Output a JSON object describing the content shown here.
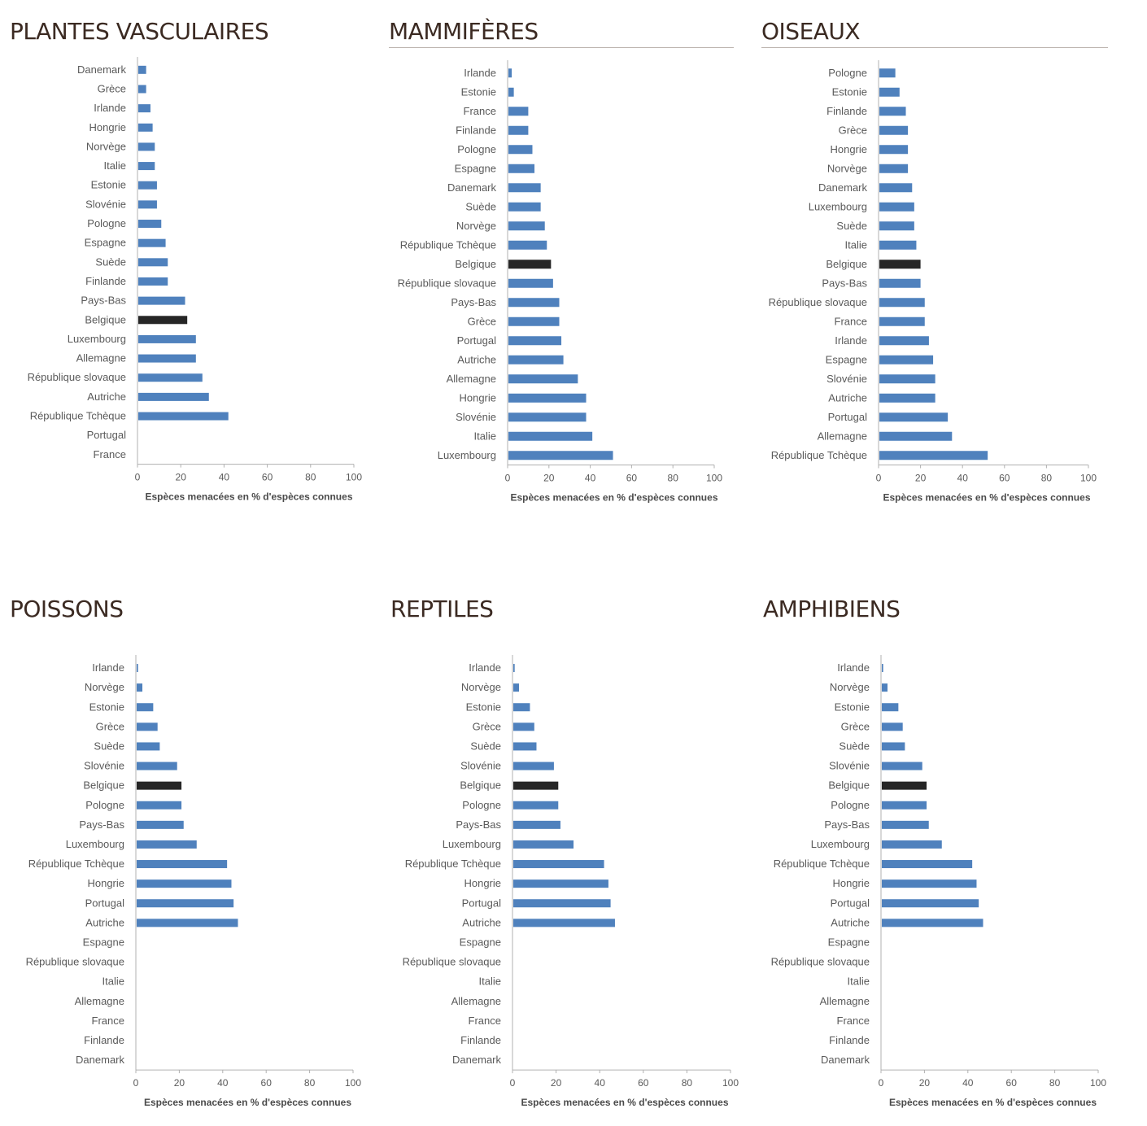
{
  "colors": {
    "bar": "#4f81bd",
    "highlight": "#262626",
    "axis": "#b0b0b0",
    "title": "#3b2a22"
  },
  "chart_data": [
    {
      "type": "bar",
      "orientation": "horizontal",
      "title": "PLANTES VASCULAIRES",
      "xlabel": "Espèces menacées en % d'espèces connues",
      "xlim": [
        0,
        100
      ],
      "xticks": [
        0,
        20,
        40,
        60,
        80,
        100
      ],
      "highlight": "Belgique",
      "categories": [
        "Danemark",
        "Grèce",
        "Irlande",
        "Hongrie",
        "Norvège",
        "Italie",
        "Estonie",
        "Slovénie",
        "Pologne",
        "Espagne",
        "Suède",
        "Finlande",
        "Pays-Bas",
        "Belgique",
        "Luxembourg",
        "Allemagne",
        "République slovaque",
        "Autriche",
        "République Tchèque",
        "Portugal",
        "France"
      ],
      "values": [
        4,
        4,
        6,
        7,
        8,
        8,
        9,
        9,
        11,
        13,
        14,
        14,
        22,
        23,
        27,
        27,
        30,
        33,
        42,
        0,
        0
      ]
    },
    {
      "type": "bar",
      "orientation": "horizontal",
      "title": "MAMMIFÈRES",
      "xlabel": "Espèces menacées en % d'espèces connues",
      "xlim": [
        0,
        100
      ],
      "xticks": [
        0,
        20,
        40,
        60,
        80,
        100
      ],
      "highlight": "Belgique",
      "categories": [
        "Irlande",
        "Estonie",
        "France",
        "Finlande",
        "Pologne",
        "Espagne",
        "Danemark",
        "Suède",
        "Norvège",
        "République Tchèque",
        "Belgique",
        "République slovaque",
        "Pays-Bas",
        "Grèce",
        "Portugal",
        "Autriche",
        "Allemagne",
        "Hongrie",
        "Slovénie",
        "Italie",
        "Luxembourg"
      ],
      "values": [
        2,
        3,
        10,
        10,
        12,
        13,
        16,
        16,
        18,
        19,
        21,
        22,
        25,
        25,
        26,
        27,
        34,
        38,
        38,
        41,
        51
      ]
    },
    {
      "type": "bar",
      "orientation": "horizontal",
      "title": "OISEAUX",
      "xlabel": "Espèces menacées en % d'espèces connues",
      "xlim": [
        0,
        100
      ],
      "xticks": [
        0,
        20,
        40,
        60,
        80,
        100
      ],
      "highlight": "Belgique",
      "categories": [
        "Pologne",
        "Estonie",
        "Finlande",
        "Grèce",
        "Hongrie",
        "Norvège",
        "Danemark",
        "Luxembourg",
        "Suède",
        "Italie",
        "Belgique",
        "Pays-Bas",
        "République slovaque",
        "France",
        "Irlande",
        "Espagne",
        "Slovénie",
        "Autriche",
        "Portugal",
        "Allemagne",
        "République Tchèque"
      ],
      "values": [
        8,
        10,
        13,
        14,
        14,
        14,
        16,
        17,
        17,
        18,
        20,
        20,
        22,
        22,
        24,
        26,
        27,
        27,
        33,
        35,
        52
      ]
    },
    {
      "type": "bar",
      "orientation": "horizontal",
      "title": "POISSONS",
      "xlabel": "Espèces menacées en % d'espèces connues",
      "xlim": [
        0,
        100
      ],
      "xticks": [
        0,
        20,
        40,
        60,
        80,
        100
      ],
      "highlight": "Belgique",
      "categories": [
        "Irlande",
        "Norvège",
        "Estonie",
        "Grèce",
        "Suède",
        "Slovénie",
        "Belgique",
        "Pologne",
        "Pays-Bas",
        "Luxembourg",
        "République Tchèque",
        "Hongrie",
        "Portugal",
        "Autriche",
        "Espagne",
        "République slovaque",
        "Italie",
        "Allemagne",
        "France",
        "Finlande",
        "Danemark"
      ],
      "values": [
        1,
        3,
        8,
        10,
        11,
        19,
        21,
        21,
        22,
        28,
        42,
        44,
        45,
        47,
        0,
        0,
        0,
        0,
        0,
        0,
        0
      ]
    },
    {
      "type": "bar",
      "orientation": "horizontal",
      "title": "REPTILES",
      "xlabel": "Espèces menacées en % d'espèces connues",
      "xlim": [
        0,
        100
      ],
      "xticks": [
        0,
        20,
        40,
        60,
        80,
        100
      ],
      "highlight": "Belgique",
      "categories": [
        "Irlande",
        "Norvège",
        "Estonie",
        "Grèce",
        "Suède",
        "Slovénie",
        "Belgique",
        "Pologne",
        "Pays-Bas",
        "Luxembourg",
        "République Tchèque",
        "Hongrie",
        "Portugal",
        "Autriche",
        "Espagne",
        "République slovaque",
        "Italie",
        "Allemagne",
        "France",
        "Finlande",
        "Danemark"
      ],
      "values": [
        1,
        3,
        8,
        10,
        11,
        19,
        21,
        21,
        22,
        28,
        42,
        44,
        45,
        47,
        0,
        0,
        0,
        0,
        0,
        0,
        0
      ]
    },
    {
      "type": "bar",
      "orientation": "horizontal",
      "title": "AMPHIBIENS",
      "xlabel": "Espèces menacées en % d'espèces connues",
      "xlim": [
        0,
        100
      ],
      "xticks": [
        0,
        20,
        40,
        60,
        80,
        100
      ],
      "highlight": "Belgique",
      "categories": [
        "Irlande",
        "Norvège",
        "Estonie",
        "Grèce",
        "Suède",
        "Slovénie",
        "Belgique",
        "Pologne",
        "Pays-Bas",
        "Luxembourg",
        "République Tchèque",
        "Hongrie",
        "Portugal",
        "Autriche",
        "Espagne",
        "République slovaque",
        "Italie",
        "Allemagne",
        "France",
        "Finlande",
        "Danemark"
      ],
      "values": [
        1,
        3,
        8,
        10,
        11,
        19,
        21,
        21,
        22,
        28,
        42,
        44,
        45,
        47,
        0,
        0,
        0,
        0,
        0,
        0,
        0
      ]
    }
  ]
}
